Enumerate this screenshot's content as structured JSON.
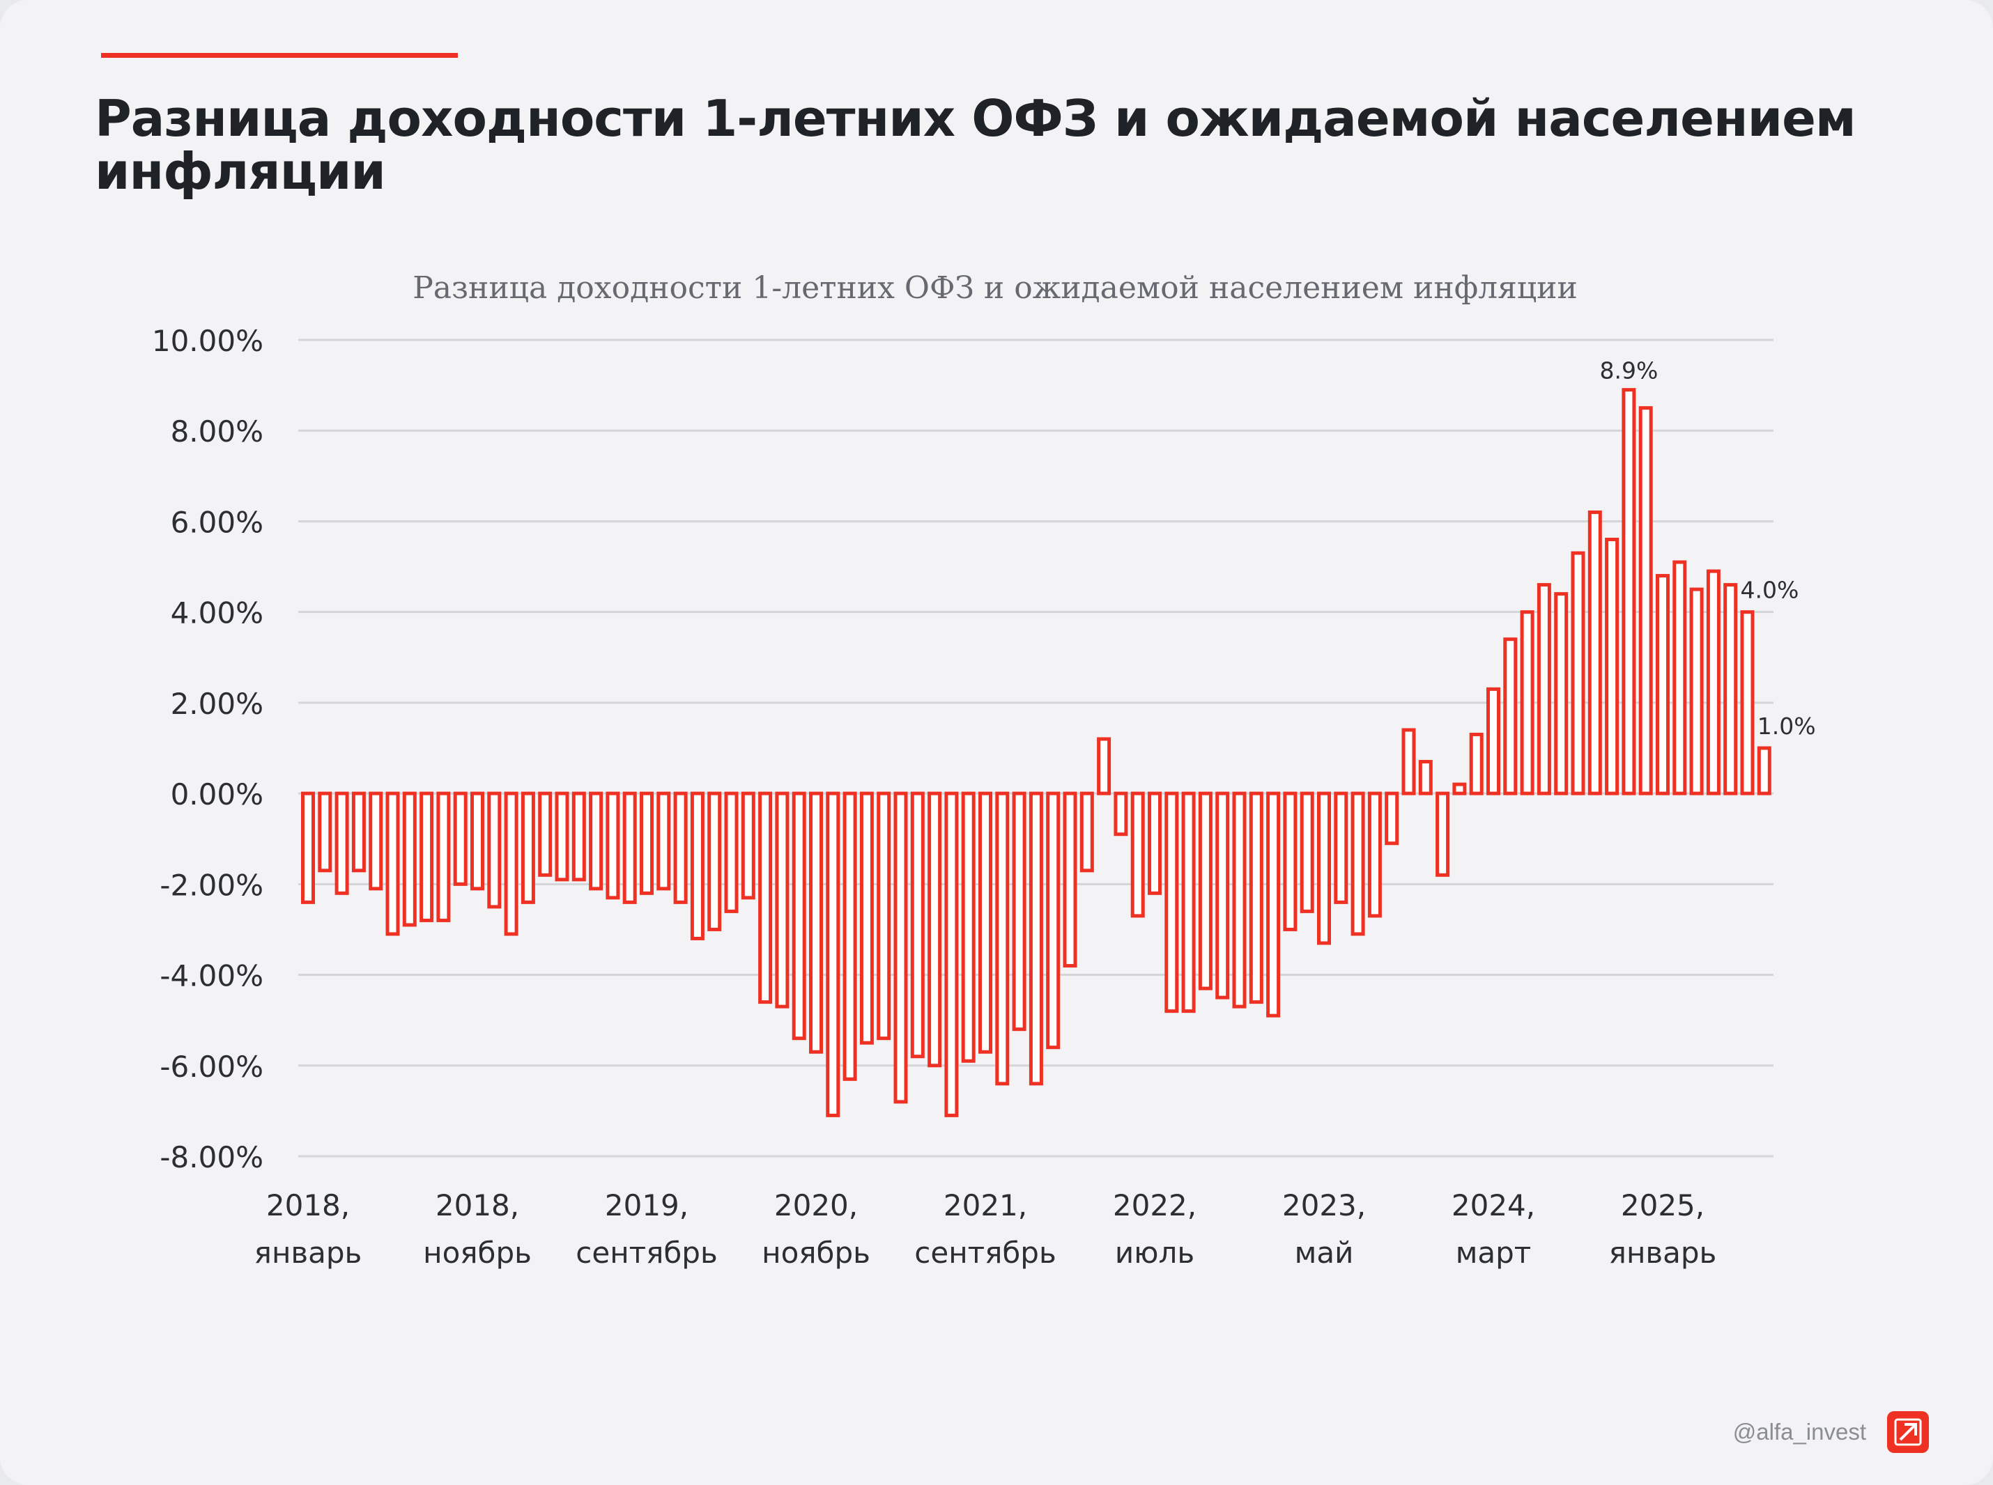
{
  "header": {
    "title": "Разница доходности 1-летних ОФЗ и ожидаемой населением инфляции"
  },
  "brand": {
    "handle": "@alfa_invest",
    "logo_icon": "alfa-arrow-logo-icon",
    "accent_color": "#ef3124"
  },
  "chart_data": {
    "type": "bar",
    "title": "Разница доходности  1-летних ОФЗ и ожидаемой населением инфляции",
    "xlabel": "",
    "ylabel": "",
    "ylim": [
      -8,
      10
    ],
    "y_ticks": [
      "10.00%",
      "8.00%",
      "6.00%",
      "4.00%",
      "2.00%",
      "0.00%",
      "-2.00%",
      "-4.00%",
      "-6.00%",
      "-8.00%"
    ],
    "grid": true,
    "legend": "none",
    "bar_color": "#ef3124",
    "x_tick_labels": [
      [
        "2018,",
        "январь"
      ],
      [
        "2018,",
        "ноябрь"
      ],
      [
        "2019,",
        "сентябрь"
      ],
      [
        "2020,",
        "ноябрь"
      ],
      [
        "2021,",
        "сентябрь"
      ],
      [
        "2022,",
        "июль"
      ],
      [
        "2023,",
        "май"
      ],
      [
        "2024,",
        "март"
      ],
      [
        "2025,",
        "январь"
      ]
    ],
    "start_month": "2018, январь",
    "values": [
      -2.4,
      -1.7,
      -2.2,
      -1.7,
      -2.1,
      -3.1,
      -2.9,
      -2.8,
      -2.8,
      -2.0,
      -2.1,
      -2.5,
      -3.1,
      -2.4,
      -1.8,
      -1.9,
      -1.9,
      -2.1,
      -2.3,
      -2.4,
      -2.2,
      -2.1,
      -2.4,
      -3.2,
      -3.0,
      -2.6,
      -2.3,
      -4.6,
      -4.7,
      -5.4,
      -5.7,
      -7.1,
      -6.3,
      -5.5,
      -5.4,
      -6.8,
      -5.8,
      -6.0,
      -7.1,
      -5.9,
      -5.7,
      -6.4,
      -5.2,
      -6.4,
      -5.6,
      -3.8,
      -1.7,
      1.2,
      -0.9,
      -2.7,
      -2.2,
      -4.8,
      -4.8,
      -4.3,
      -4.5,
      -4.7,
      -4.6,
      -4.9,
      -3.0,
      -2.6,
      -3.3,
      -2.4,
      -3.1,
      -2.7,
      -1.1,
      1.4,
      0.7,
      -1.8,
      0.2,
      1.3,
      2.3,
      3.4,
      4.0,
      4.6,
      4.4,
      5.3,
      6.2,
      5.6,
      8.9,
      8.5,
      4.8,
      5.1,
      4.5,
      4.9,
      4.6,
      4.0,
      1.0
    ],
    "annotations": [
      {
        "index": 78,
        "text": "8.9%"
      },
      {
        "index": 85,
        "text": "4.0%"
      },
      {
        "index": 86,
        "text": "1.0%"
      }
    ]
  }
}
